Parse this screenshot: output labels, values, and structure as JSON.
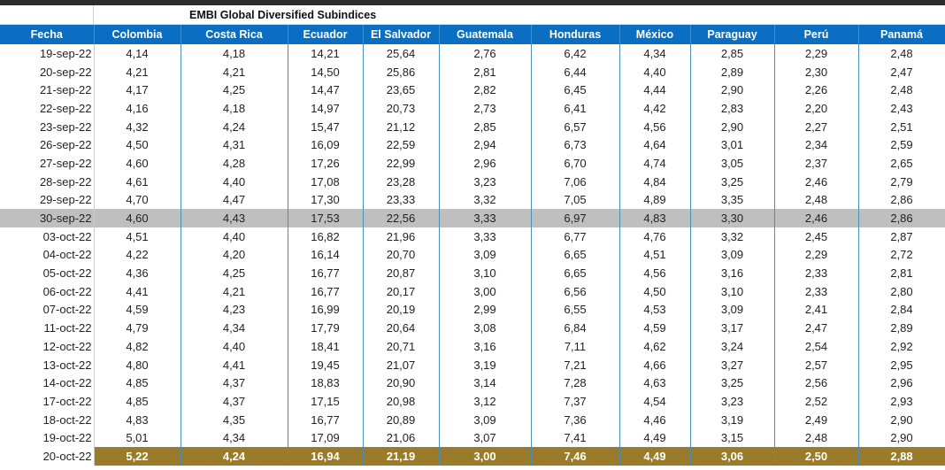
{
  "title": "EMBI Global Diversified Subindices",
  "columns": [
    "Fecha",
    "Colombia",
    "Costa Rica",
    "Ecuador",
    "El Salvador",
    "Guatemala",
    "Honduras",
    "México",
    "Paraguay",
    "Perú",
    "Panamá"
  ],
  "colors": {
    "header": "#0a6fc2",
    "highlight": "#bfbfbf",
    "latest": "#9a7b2c"
  },
  "highlighted_row": "30-sep-22",
  "latest_row": "20-oct-22",
  "rows": [
    [
      "19-sep-22",
      "4,14",
      "4,18",
      "14,21",
      "25,64",
      "2,76",
      "6,42",
      "4,34",
      "2,85",
      "2,29",
      "2,48"
    ],
    [
      "20-sep-22",
      "4,21",
      "4,21",
      "14,50",
      "25,86",
      "2,81",
      "6,44",
      "4,40",
      "2,89",
      "2,30",
      "2,47"
    ],
    [
      "21-sep-22",
      "4,17",
      "4,25",
      "14,47",
      "23,65",
      "2,82",
      "6,45",
      "4,44",
      "2,90",
      "2,26",
      "2,48"
    ],
    [
      "22-sep-22",
      "4,16",
      "4,18",
      "14,97",
      "20,73",
      "2,73",
      "6,41",
      "4,42",
      "2,83",
      "2,20",
      "2,43"
    ],
    [
      "23-sep-22",
      "4,32",
      "4,24",
      "15,47",
      "21,12",
      "2,85",
      "6,57",
      "4,56",
      "2,90",
      "2,27",
      "2,51"
    ],
    [
      "26-sep-22",
      "4,50",
      "4,31",
      "16,09",
      "22,59",
      "2,94",
      "6,73",
      "4,64",
      "3,01",
      "2,34",
      "2,59"
    ],
    [
      "27-sep-22",
      "4,60",
      "4,28",
      "17,26",
      "22,99",
      "2,96",
      "6,70",
      "4,74",
      "3,05",
      "2,37",
      "2,65"
    ],
    [
      "28-sep-22",
      "4,61",
      "4,40",
      "17,08",
      "23,28",
      "3,23",
      "7,06",
      "4,84",
      "3,25",
      "2,46",
      "2,79"
    ],
    [
      "29-sep-22",
      "4,70",
      "4,47",
      "17,30",
      "23,33",
      "3,32",
      "7,05",
      "4,89",
      "3,35",
      "2,48",
      "2,86"
    ],
    [
      "30-sep-22",
      "4,60",
      "4,43",
      "17,53",
      "22,56",
      "3,33",
      "6,97",
      "4,83",
      "3,30",
      "2,46",
      "2,86"
    ],
    [
      "03-oct-22",
      "4,51",
      "4,40",
      "16,82",
      "21,96",
      "3,33",
      "6,77",
      "4,76",
      "3,32",
      "2,45",
      "2,87"
    ],
    [
      "04-oct-22",
      "4,22",
      "4,20",
      "16,14",
      "20,70",
      "3,09",
      "6,65",
      "4,51",
      "3,09",
      "2,29",
      "2,72"
    ],
    [
      "05-oct-22",
      "4,36",
      "4,25",
      "16,77",
      "20,87",
      "3,10",
      "6,65",
      "4,56",
      "3,16",
      "2,33",
      "2,81"
    ],
    [
      "06-oct-22",
      "4,41",
      "4,21",
      "16,77",
      "20,17",
      "3,00",
      "6,56",
      "4,50",
      "3,10",
      "2,33",
      "2,80"
    ],
    [
      "07-oct-22",
      "4,59",
      "4,23",
      "16,99",
      "20,19",
      "2,99",
      "6,55",
      "4,53",
      "3,09",
      "2,41",
      "2,84"
    ],
    [
      "11-oct-22",
      "4,79",
      "4,34",
      "17,79",
      "20,64",
      "3,08",
      "6,84",
      "4,59",
      "3,17",
      "2,47",
      "2,89"
    ],
    [
      "12-oct-22",
      "4,82",
      "4,40",
      "18,41",
      "20,71",
      "3,16",
      "7,11",
      "4,62",
      "3,24",
      "2,54",
      "2,92"
    ],
    [
      "13-oct-22",
      "4,80",
      "4,41",
      "19,45",
      "21,07",
      "3,19",
      "7,21",
      "4,66",
      "3,27",
      "2,57",
      "2,95"
    ],
    [
      "14-oct-22",
      "4,85",
      "4,37",
      "18,83",
      "20,90",
      "3,14",
      "7,28",
      "4,63",
      "3,25",
      "2,56",
      "2,96"
    ],
    [
      "17-oct-22",
      "4,85",
      "4,37",
      "17,15",
      "20,98",
      "3,12",
      "7,37",
      "4,54",
      "3,23",
      "2,52",
      "2,93"
    ],
    [
      "18-oct-22",
      "4,83",
      "4,35",
      "16,77",
      "20,89",
      "3,09",
      "7,36",
      "4,46",
      "3,19",
      "2,49",
      "2,90"
    ],
    [
      "19-oct-22",
      "5,01",
      "4,34",
      "17,09",
      "21,06",
      "3,07",
      "7,41",
      "4,49",
      "3,15",
      "2,48",
      "2,90"
    ],
    [
      "20-oct-22",
      "5,22",
      "4,24",
      "16,94",
      "21,19",
      "3,00",
      "7,46",
      "4,49",
      "3,06",
      "2,50",
      "2,88"
    ]
  ]
}
